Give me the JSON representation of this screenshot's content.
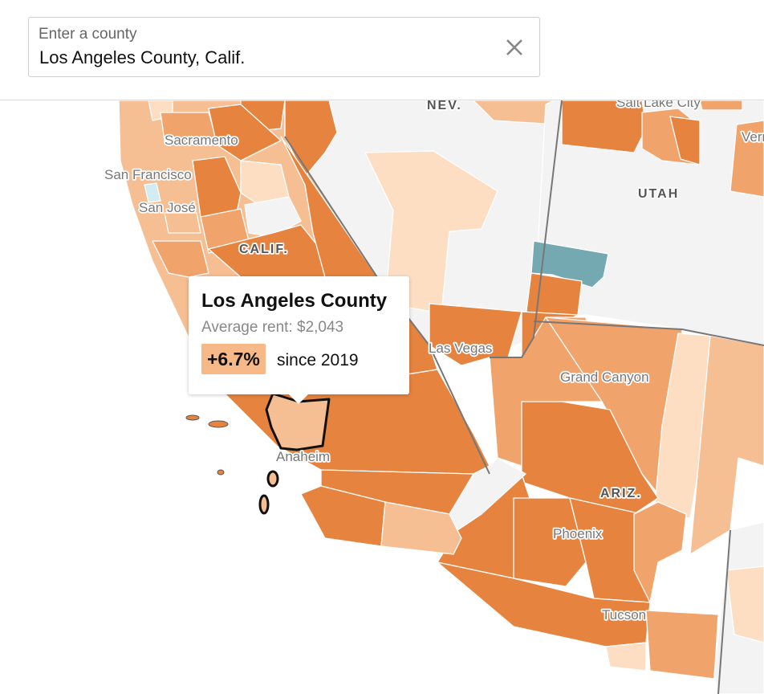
{
  "search": {
    "label": "Enter a county",
    "value": "Los Angeles County, Calif.",
    "clear_icon": "close-icon"
  },
  "map": {
    "state_labels": [
      "NEV.",
      "UTAH",
      "CALIF.",
      "ARIZ."
    ],
    "city_labels": [
      "Salt Lake City",
      "Sacramento",
      "San Francisco",
      "San José",
      "Las Vegas",
      "Grand Canyon",
      "Anaheim",
      "Phoenix",
      "Tucson",
      "Vern"
    ],
    "colors": {
      "dark_orange": "#e5833f",
      "mid_orange": "#f1a36c",
      "light_orange": "#f6bf93",
      "pale_orange": "#fddec3",
      "no_data": "#f3f3f3",
      "teal": "#74a9b2",
      "light_blue": "#d3ecf2"
    }
  },
  "tooltip": {
    "county": "Los Angeles County",
    "rent": "Average rent: $2,043",
    "change": "+6.7%",
    "since": "since 2019"
  }
}
